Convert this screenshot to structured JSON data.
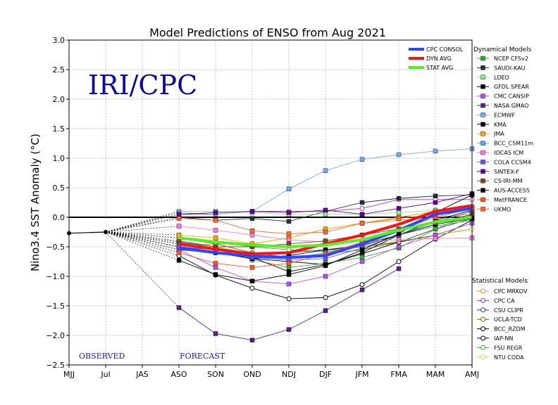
{
  "chart_data": {
    "type": "line",
    "title": "Model Predictions of ENSO from Aug 2021",
    "watermark": "IRI/CPC",
    "ylabel": "Nino3.4 SST Anomaly (°C)",
    "xlabel": "",
    "categories": [
      "MJJ",
      "Jul",
      "JAS",
      "ASO",
      "SON",
      "OND",
      "NDJ",
      "DJF",
      "JFM",
      "FMA",
      "MAM",
      "AMJ"
    ],
    "yticks": [
      "3.0",
      "2.5",
      "2.0",
      "1.5",
      "1.0",
      "0.5",
      "0.0",
      "−0.5",
      "−1.0",
      "−1.5",
      "−2.0",
      "−2.5"
    ],
    "ylim": [
      -2.5,
      3.0
    ],
    "grid": true,
    "observed_label": "OBSERVED",
    "forecast_label": "FORECAST",
    "observed": [
      -0.27,
      -0.25
    ],
    "observed_color": "#000000",
    "consensus": [
      {
        "name": "CPC CONSOL",
        "color": "#2b46ff",
        "values": [
          -0.52,
          -0.6,
          -0.66,
          -0.68,
          -0.65,
          -0.45,
          -0.22,
          0.05,
          0.15
        ]
      },
      {
        "name": "DYN AVG",
        "color": "#ff1010",
        "values": [
          -0.45,
          -0.54,
          -0.62,
          -0.6,
          -0.45,
          -0.3,
          -0.12,
          0.1,
          0.2
        ]
      },
      {
        "name": "STAT AVG",
        "color": "#55ee22",
        "values": [
          -0.35,
          -0.42,
          -0.47,
          -0.5,
          -0.47,
          -0.38,
          -0.22,
          -0.08,
          0.0
        ]
      }
    ],
    "dynamical_title": "Dynamical Models",
    "dynamical": [
      {
        "name": "NCEP CFSv2",
        "color": "#33aa33",
        "values": [
          -0.45,
          -0.52,
          -0.72,
          -0.85,
          -0.78,
          -0.68,
          -0.52,
          -0.2,
          0.05
        ]
      },
      {
        "name": "SAUDI-KAU",
        "color": "#203040",
        "values": [
          0.0,
          -0.05,
          -0.02,
          -0.07,
          0.1,
          0.25,
          0.32,
          0.36,
          0.38
        ]
      },
      {
        "name": "LDEO",
        "color": "#88ee88",
        "values": [
          0.1,
          0.1,
          0.08,
          0.05,
          0.05,
          0.05,
          0.08,
          0.12,
          0.15
        ]
      },
      {
        "name": "GFDL SPEAR",
        "color": "#000000",
        "values": [
          -0.55,
          -0.6,
          -0.7,
          -0.65,
          -0.55,
          -0.48,
          -0.3,
          -0.12,
          -0.02
        ]
      },
      {
        "name": "CMC CANSIP",
        "color": "#aa55ee",
        "values": [
          -0.55,
          -0.85,
          -1.08,
          -1.13,
          -1.0,
          -0.75,
          -0.5,
          -0.3,
          -0.1
        ]
      },
      {
        "name": "NASA GMAO",
        "color": "#552288",
        "values": [
          -1.53,
          -1.97,
          -2.08,
          -1.9,
          -1.58,
          -1.23,
          -0.87,
          null,
          null
        ]
      },
      {
        "name": "ECMWF",
        "color": "#77aaee",
        "values": [
          0.08,
          0.05,
          0.1,
          0.48,
          0.79,
          0.98,
          1.06,
          1.12,
          1.16
        ]
      },
      {
        "name": "KMA",
        "color": "#000000",
        "values": [
          -0.5,
          -0.58,
          -0.68,
          -0.92,
          -0.8,
          -0.6,
          -0.3,
          -0.05,
          0.12
        ]
      },
      {
        "name": "JMA",
        "color": "#ffaa00",
        "values": [
          -0.3,
          -0.35,
          -0.45,
          -0.35,
          -0.2,
          -0.1,
          0.0,
          0.1,
          null
        ]
      },
      {
        "name": "BCC_CSM11m",
        "color": "#55aaee",
        "values": [
          -0.5,
          -0.55,
          -0.62,
          -0.7,
          -0.6,
          -0.45,
          -0.2,
          0.05,
          0.18
        ]
      },
      {
        "name": "IOCAS ICM",
        "color": "#ff77dd",
        "values": [
          -0.15,
          -0.22,
          -0.3,
          -0.38,
          -0.42,
          -0.4,
          -0.38,
          -0.36,
          -0.35
        ]
      },
      {
        "name": "COLA CCSM4",
        "color": "#6655ee",
        "values": [
          -0.5,
          -0.55,
          -0.68,
          -0.72,
          -0.7,
          -0.52,
          -0.3,
          -0.08,
          0.1
        ]
      },
      {
        "name": "SINTEX-F",
        "color": "#660099",
        "values": [
          0.05,
          0.08,
          0.1,
          0.08,
          0.12,
          0.05,
          0.15,
          0.25,
          0.4
        ]
      },
      {
        "name": "CS-IRI-MM",
        "color": "#774422",
        "values": [
          -0.4,
          -0.5,
          -0.5,
          -0.45,
          -0.4,
          -0.3,
          -0.2,
          -0.1,
          0.05
        ]
      },
      {
        "name": "AUS-ACCESS",
        "color": "#000000",
        "values": [
          -0.73,
          -0.97,
          -1.08,
          -0.97,
          -0.82,
          -0.55,
          -0.28,
          0.08,
          0.38
        ]
      },
      {
        "name": "MetFRANCE",
        "color": "#ff5522",
        "values": [
          -0.6,
          -0.78,
          -0.85,
          -0.78,
          -0.62,
          -0.42,
          -0.22,
          0.0,
          0.15
        ]
      },
      {
        "name": "UKMO",
        "color": "#ff6633",
        "values": [
          -0.02,
          -0.05,
          -0.23,
          -0.28,
          -0.25,
          -0.1,
          -0.02,
          0.05,
          null
        ]
      }
    ],
    "statistical_title": "Statistical Models",
    "statistical": [
      {
        "name": "CPC MRKOV",
        "color": "#ee8833",
        "values": [
          -0.5,
          -0.45,
          -0.45,
          -0.35,
          -0.2,
          -0.1,
          -0.05,
          0.0,
          0.05
        ]
      },
      {
        "name": "CPC CA",
        "color": "#aa3399",
        "values": [
          0.05,
          0.05,
          0.1,
          0.1,
          0.1,
          0.15,
          0.3,
          0.3,
          0.3
        ]
      },
      {
        "name": "CSU CLIPR",
        "color": "#224466",
        "values": [
          -0.42,
          -0.5,
          -0.62,
          -0.6,
          -0.55,
          -0.5,
          -0.42,
          -0.2,
          -0.02
        ]
      },
      {
        "name": "UCLA-TCD",
        "color": "#666600",
        "values": [
          -0.35,
          -0.45,
          -0.6,
          -0.68,
          -0.62,
          -0.55,
          -0.42,
          -0.3,
          -0.2
        ]
      },
      {
        "name": "BCC_RZDM",
        "color": "#000000",
        "values": [
          -0.65,
          -0.98,
          -1.2,
          -1.38,
          -1.36,
          -1.14,
          -0.75,
          -0.37,
          -0.05
        ]
      },
      {
        "name": "IAP-NN",
        "color": "#000000",
        "values": [
          -0.5,
          -0.6,
          -0.7,
          -0.75,
          -0.8,
          -0.62,
          -0.42,
          -0.3,
          -0.2
        ]
      },
      {
        "name": "FSU REGR",
        "color": "#33aa33",
        "values": [
          -0.35,
          -0.42,
          -0.5,
          -0.55,
          -0.58,
          -0.45,
          -0.3,
          -0.15,
          -0.05
        ]
      },
      {
        "name": "NTU CODA",
        "color": "#ccdd44",
        "values": [
          -0.45,
          -0.5,
          -0.62,
          -0.68,
          -0.62,
          -0.5,
          -0.4,
          -0.3,
          -0.2
        ]
      }
    ]
  }
}
